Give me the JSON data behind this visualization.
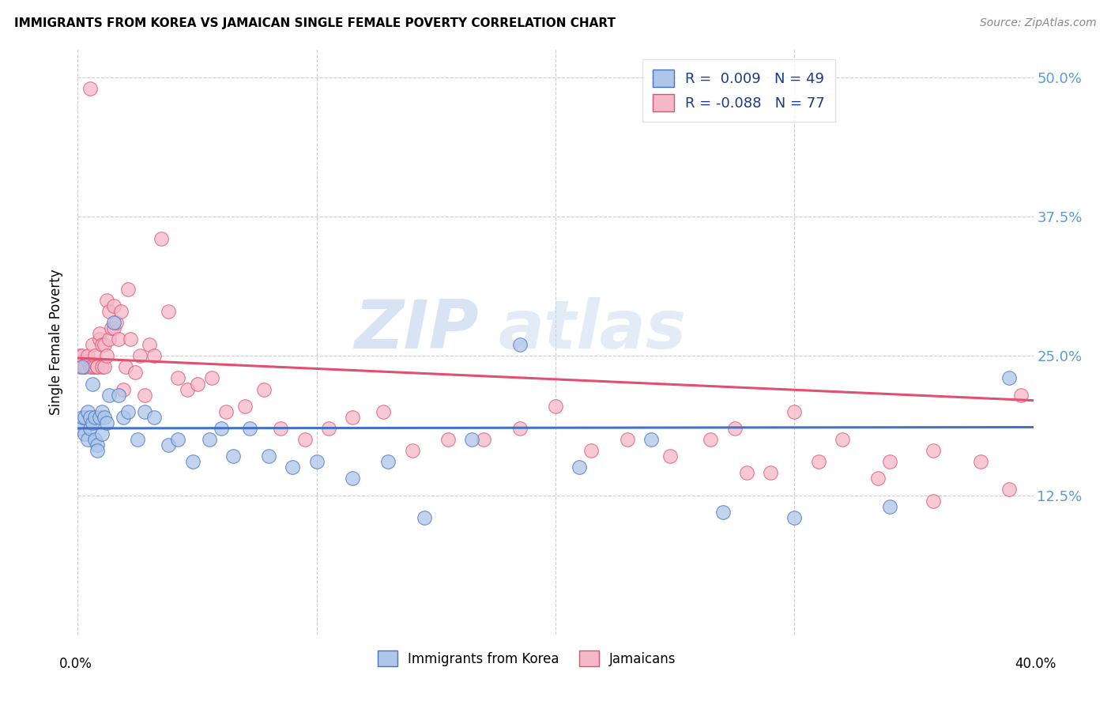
{
  "title": "IMMIGRANTS FROM KOREA VS JAMAICAN SINGLE FEMALE POVERTY CORRELATION CHART",
  "source": "Source: ZipAtlas.com",
  "ylabel": "Single Female Poverty",
  "y_ticks": [
    0.0,
    0.125,
    0.25,
    0.375,
    0.5
  ],
  "y_tick_labels": [
    "",
    "12.5%",
    "25.0%",
    "37.5%",
    "50.0%"
  ],
  "xlim": [
    0.0,
    0.4
  ],
  "ylim": [
    0.0,
    0.525
  ],
  "korea_R": 0.009,
  "korea_N": 49,
  "jamaica_R": -0.088,
  "jamaica_N": 77,
  "korea_color": "#aec6e8",
  "jamaica_color": "#f4b8c8",
  "korea_line_color": "#4472c4",
  "jamaica_line_color": "#e05070",
  "legend_label_korea": "Immigrants from Korea",
  "legend_label_jamaica": "Jamaicans",
  "watermark_zip": "ZIP",
  "watermark_atlas": "atlas",
  "background_color": "#ffffff",
  "korea_x": [
    0.001,
    0.002,
    0.002,
    0.003,
    0.003,
    0.004,
    0.004,
    0.005,
    0.005,
    0.006,
    0.006,
    0.007,
    0.007,
    0.008,
    0.008,
    0.009,
    0.01,
    0.01,
    0.011,
    0.012,
    0.013,
    0.015,
    0.017,
    0.019,
    0.021,
    0.025,
    0.028,
    0.032,
    0.038,
    0.042,
    0.048,
    0.055,
    0.06,
    0.065,
    0.072,
    0.08,
    0.09,
    0.1,
    0.115,
    0.13,
    0.145,
    0.165,
    0.185,
    0.21,
    0.24,
    0.27,
    0.3,
    0.34,
    0.39
  ],
  "korea_y": [
    0.185,
    0.24,
    0.195,
    0.195,
    0.18,
    0.175,
    0.2,
    0.195,
    0.185,
    0.225,
    0.19,
    0.175,
    0.195,
    0.17,
    0.165,
    0.195,
    0.18,
    0.2,
    0.195,
    0.19,
    0.215,
    0.28,
    0.215,
    0.195,
    0.2,
    0.175,
    0.2,
    0.195,
    0.17,
    0.175,
    0.155,
    0.175,
    0.185,
    0.16,
    0.185,
    0.16,
    0.15,
    0.155,
    0.14,
    0.155,
    0.105,
    0.175,
    0.26,
    0.15,
    0.175,
    0.11,
    0.105,
    0.115,
    0.23
  ],
  "jamaica_x": [
    0.001,
    0.001,
    0.002,
    0.002,
    0.003,
    0.003,
    0.004,
    0.004,
    0.005,
    0.005,
    0.006,
    0.006,
    0.007,
    0.007,
    0.008,
    0.008,
    0.009,
    0.009,
    0.01,
    0.01,
    0.011,
    0.011,
    0.012,
    0.012,
    0.013,
    0.013,
    0.014,
    0.015,
    0.015,
    0.016,
    0.017,
    0.018,
    0.019,
    0.02,
    0.021,
    0.022,
    0.024,
    0.026,
    0.028,
    0.03,
    0.032,
    0.035,
    0.038,
    0.042,
    0.046,
    0.05,
    0.056,
    0.062,
    0.07,
    0.078,
    0.085,
    0.095,
    0.105,
    0.115,
    0.128,
    0.14,
    0.155,
    0.17,
    0.185,
    0.2,
    0.215,
    0.23,
    0.248,
    0.265,
    0.28,
    0.3,
    0.32,
    0.34,
    0.358,
    0.275,
    0.29,
    0.31,
    0.335,
    0.358,
    0.378,
    0.39,
    0.395
  ],
  "jamaica_y": [
    0.24,
    0.25,
    0.245,
    0.25,
    0.24,
    0.24,
    0.245,
    0.25,
    0.49,
    0.24,
    0.26,
    0.24,
    0.25,
    0.24,
    0.24,
    0.24,
    0.265,
    0.27,
    0.26,
    0.24,
    0.26,
    0.24,
    0.25,
    0.3,
    0.29,
    0.265,
    0.275,
    0.295,
    0.275,
    0.28,
    0.265,
    0.29,
    0.22,
    0.24,
    0.31,
    0.265,
    0.235,
    0.25,
    0.215,
    0.26,
    0.25,
    0.355,
    0.29,
    0.23,
    0.22,
    0.225,
    0.23,
    0.2,
    0.205,
    0.22,
    0.185,
    0.175,
    0.185,
    0.195,
    0.2,
    0.165,
    0.175,
    0.175,
    0.185,
    0.205,
    0.165,
    0.175,
    0.16,
    0.175,
    0.145,
    0.2,
    0.175,
    0.155,
    0.165,
    0.185,
    0.145,
    0.155,
    0.14,
    0.12,
    0.155,
    0.13,
    0.215
  ],
  "korea_trend_y0": 0.185,
  "korea_trend_y1": 0.186,
  "jamaica_trend_y0": 0.248,
  "jamaica_trend_y1": 0.21
}
